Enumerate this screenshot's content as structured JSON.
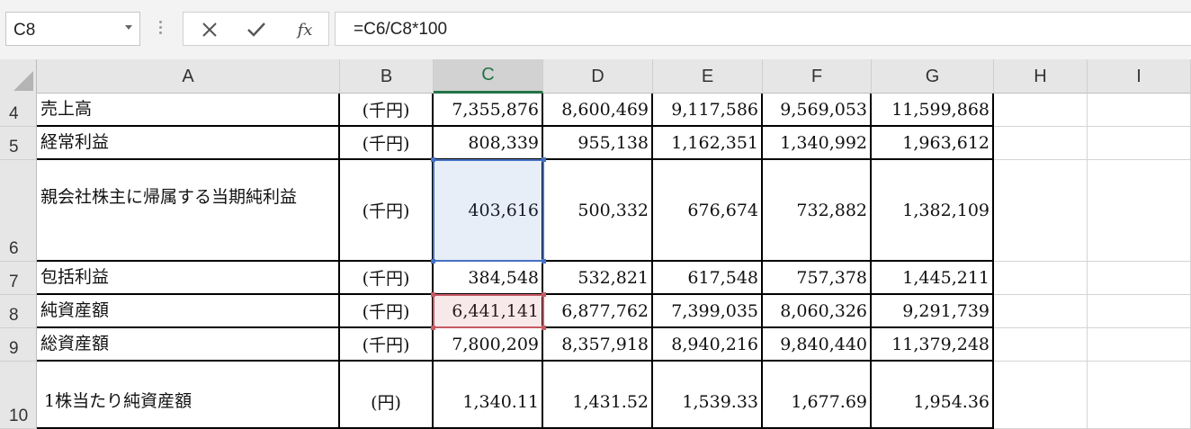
{
  "formula_bar": {
    "name_box": "C8",
    "cancel_icon": "close-icon",
    "enter_icon": "checkmark-icon",
    "function_label": "fx",
    "formula": "=C6/C8*100"
  },
  "columns": [
    "A",
    "B",
    "C",
    "D",
    "E",
    "F",
    "G",
    "H",
    "I"
  ],
  "active_column": "C",
  "rows": [
    {
      "num": "4",
      "label": "売上高",
      "unit": "(千円)",
      "values": [
        "7,355,876",
        "8,600,469",
        "9,117,586",
        "9,569,053",
        "11,599,868"
      ]
    },
    {
      "num": "5",
      "label": "経常利益",
      "unit": "(千円)",
      "values": [
        "808,339",
        "955,138",
        "1,162,351",
        "1,340,992",
        "1,963,612"
      ]
    },
    {
      "num": "6",
      "label": "親会社株主に帰属する当期純利益",
      "unit": "(千円)",
      "values": [
        "403,616",
        "500,332",
        "676,674",
        "732,882",
        "1,382,109"
      ]
    },
    {
      "num": "7",
      "label": "包括利益",
      "unit": "(千円)",
      "values": [
        "384,548",
        "532,821",
        "617,548",
        "757,378",
        "1,445,211"
      ]
    },
    {
      "num": "8",
      "label": "純資産額",
      "unit": "(千円)",
      "values": [
        "6,441,141",
        "6,877,762",
        "7,399,035",
        "8,060,326",
        "9,291,739"
      ]
    },
    {
      "num": "9",
      "label": "総資産額",
      "unit": "(千円)",
      "values": [
        "7,800,209",
        "8,357,918",
        "8,940,216",
        "9,840,440",
        "11,379,248"
      ]
    },
    {
      "num": "10",
      "label": "1株当たり純資産額",
      "unit": "(円)",
      "values": [
        "1,340.11",
        "1,431.52",
        "1,539.33",
        "1,677.69",
        "1,954.36"
      ]
    }
  ],
  "colors": {
    "excel_green": "#217346",
    "formula_ref_blue": "#4472c4",
    "formula_ref_red": "#c65a64"
  }
}
